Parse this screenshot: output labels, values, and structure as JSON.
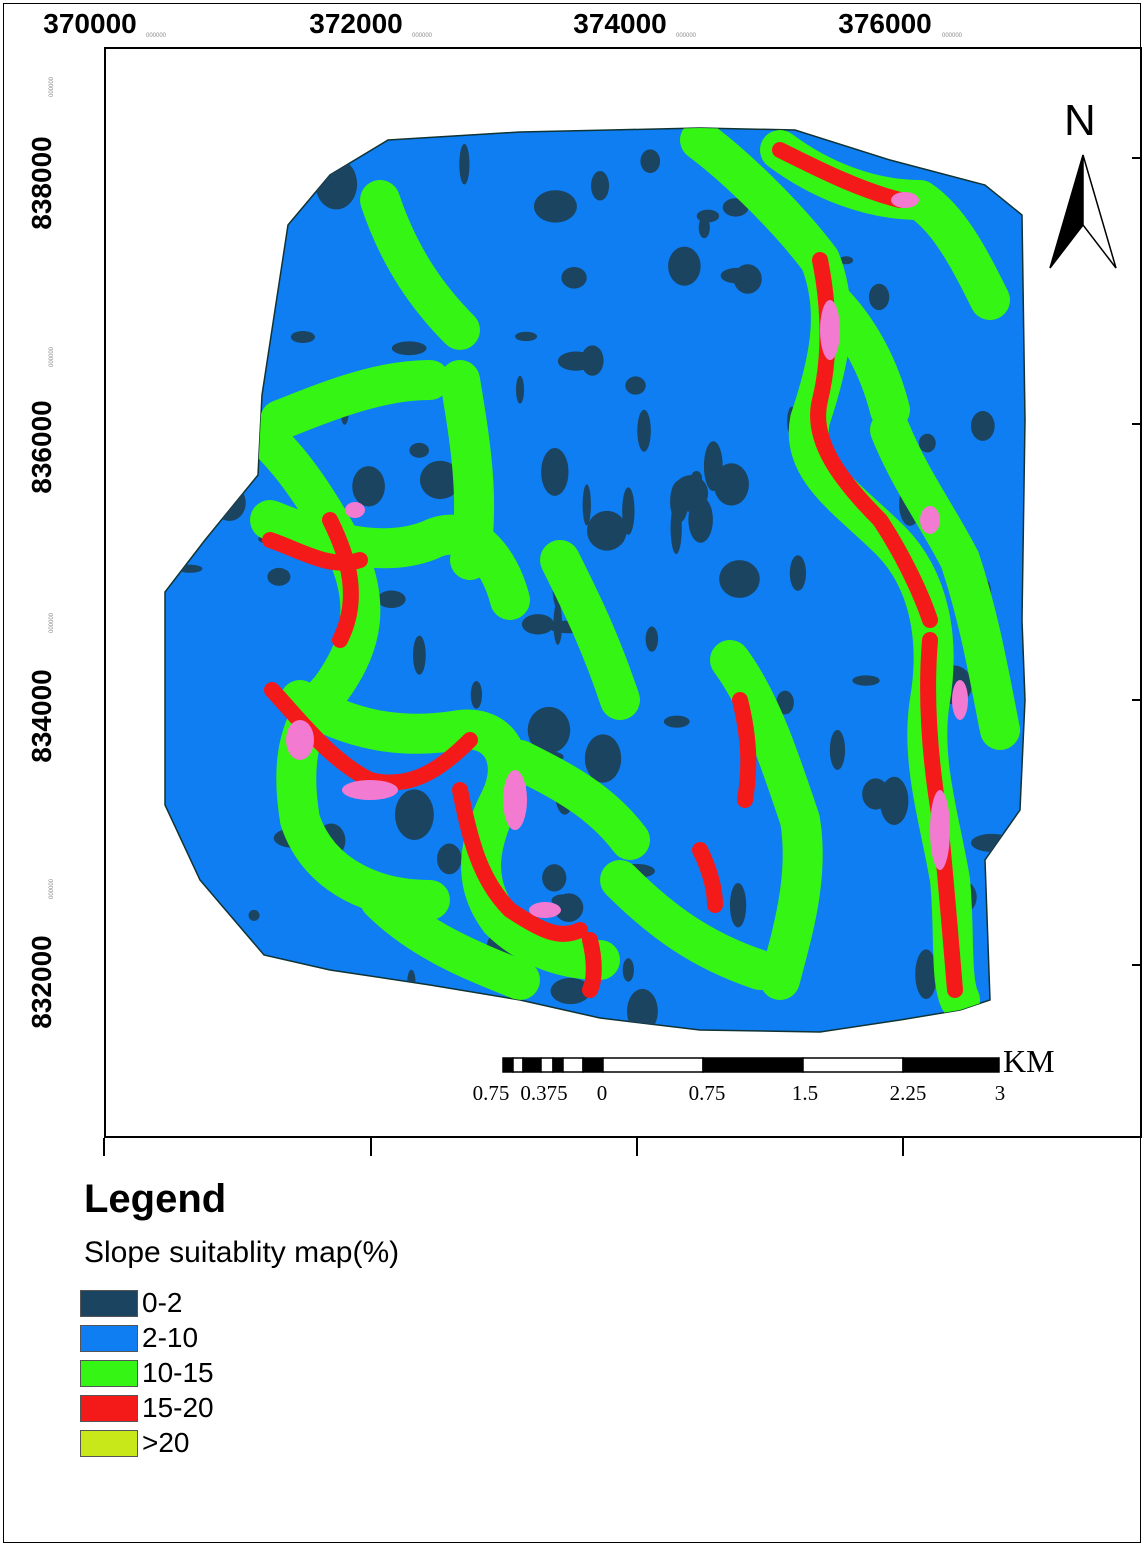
{
  "map": {
    "x_ticks": [
      "370000",
      "372000",
      "374000",
      "376000"
    ],
    "y_ticks": [
      "838000",
      "836000",
      "834000",
      "832000"
    ],
    "tick_suffix": "000000",
    "north_label": "N",
    "scale_labels": [
      "0.75",
      "0.375",
      "0",
      "0.75",
      "1.5",
      "2.25",
      "3"
    ],
    "scale_unit": "KM"
  },
  "legend": {
    "title": "Legend",
    "subtitle": "Slope suitablity map(%)",
    "items": [
      {
        "label": "0-2",
        "color": "#1b4461"
      },
      {
        "label": "2-10",
        "color": "#0f7ef2"
      },
      {
        "label": "10-15",
        "color": "#35f514"
      },
      {
        "label": "15-20",
        "color": "#f51a1a"
      },
      {
        "label": ">20",
        "color": "#c8e81a"
      }
    ],
    "highlight_color": "#f27ad0"
  }
}
